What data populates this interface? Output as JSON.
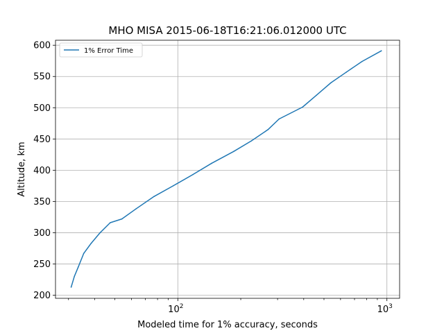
{
  "chart_data": {
    "type": "line",
    "title": "MHO MISA 2015-06-18T16:21:06.012000 UTC",
    "xlabel": "Modeled time for 1% accuracy, seconds",
    "ylabel": "Altitude, km",
    "xscale": "log",
    "xlim": [
      26,
      1150
    ],
    "ylim": [
      195,
      608
    ],
    "xticks_major": [
      100,
      1000
    ],
    "xtick_labels": [
      {
        "base": "10",
        "exp": "2"
      },
      {
        "base": "10",
        "exp": "3"
      }
    ],
    "yticks": [
      200,
      250,
      300,
      350,
      400,
      450,
      500,
      550,
      600
    ],
    "ytick_labels": [
      "200",
      "250",
      "300",
      "350",
      "400",
      "450",
      "500",
      "550",
      "600"
    ],
    "grid": true,
    "legend_position": "upper-left",
    "series": [
      {
        "name": "1% Error Time",
        "color": "#1f77b4",
        "x": [
          30.9,
          32.0,
          33.4,
          35.5,
          38.5,
          42.5,
          47.5,
          54.0,
          63.0,
          77.0,
          95.0,
          118.0,
          145.0,
          185.0,
          225.0,
          270.0,
          305.0,
          395.0,
          460.0,
          540.0,
          640.0,
          760.0,
          940.0
        ],
        "y": [
          213,
          230,
          245,
          267,
          283,
          300,
          316,
          322,
          338,
          358,
          375,
          393,
          411,
          430,
          447,
          465,
          482,
          501,
          520,
          540,
          557,
          574,
          591
        ]
      }
    ]
  }
}
